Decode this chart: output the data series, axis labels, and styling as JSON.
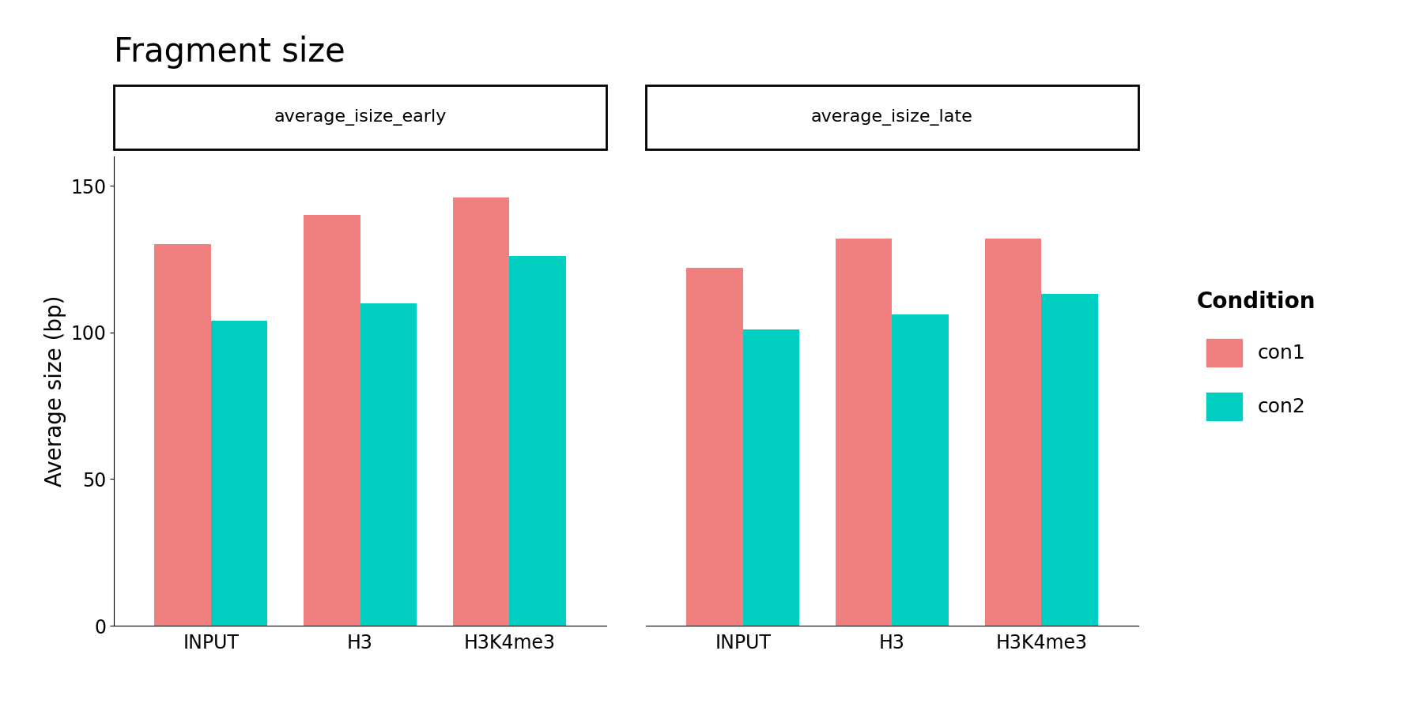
{
  "title": "Fragment size",
  "ylabel": "Average size (bp)",
  "facets": [
    "average_isize_early",
    "average_isize_late"
  ],
  "categories": [
    "INPUT",
    "H3",
    "H3K4me3"
  ],
  "conditions": [
    "con1",
    "con2"
  ],
  "con1_color": "#F08080",
  "con2_color": "#00CEC0",
  "data": {
    "average_isize_early": {
      "con1": [
        130,
        140,
        146
      ],
      "con2": [
        104,
        110,
        126
      ]
    },
    "average_isize_late": {
      "con1": [
        122,
        132,
        132
      ],
      "con2": [
        101,
        106,
        113
      ]
    }
  },
  "ylim": [
    0,
    160
  ],
  "yticks": [
    0,
    50,
    100,
    150
  ],
  "bar_width": 0.38,
  "title_fontsize": 30,
  "axis_label_fontsize": 20,
  "tick_fontsize": 17,
  "legend_title_fontsize": 20,
  "legend_fontsize": 18,
  "facet_label_fontsize": 16
}
